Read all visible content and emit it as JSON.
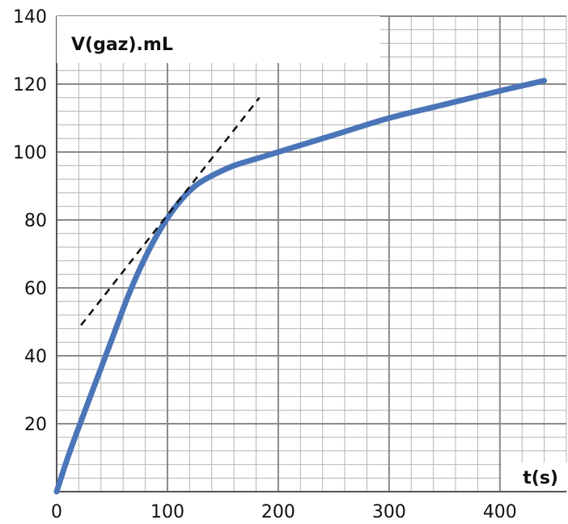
{
  "chart_data": {
    "type": "line",
    "title": "",
    "xlabel": "t(s)",
    "ylabel": "V(gaz).mL",
    "xlim": [
      0,
      460
    ],
    "ylim": [
      0,
      140
    ],
    "x_ticks": [
      0,
      100,
      200,
      300,
      400
    ],
    "y_ticks": [
      20,
      40,
      60,
      80,
      100,
      120,
      140
    ],
    "grid": true,
    "legend": "none",
    "series": [
      {
        "color": "#4a75b8",
        "style": "solid",
        "x": [
          0,
          10,
          20,
          35,
          50,
          65,
          80,
          95,
          110,
          125,
          140,
          160,
          180,
          200,
          230,
          260,
          300,
          350,
          400,
          440
        ],
        "y": [
          0,
          10,
          19,
          32,
          45,
          58,
          69,
          78,
          85,
          90,
          93,
          96,
          98,
          100,
          103,
          106,
          110,
          114,
          118,
          121
        ]
      },
      {
        "color": "#111111",
        "style": "dashed",
        "x": [
          22,
          183
        ],
        "y": [
          49,
          116
        ]
      }
    ]
  }
}
